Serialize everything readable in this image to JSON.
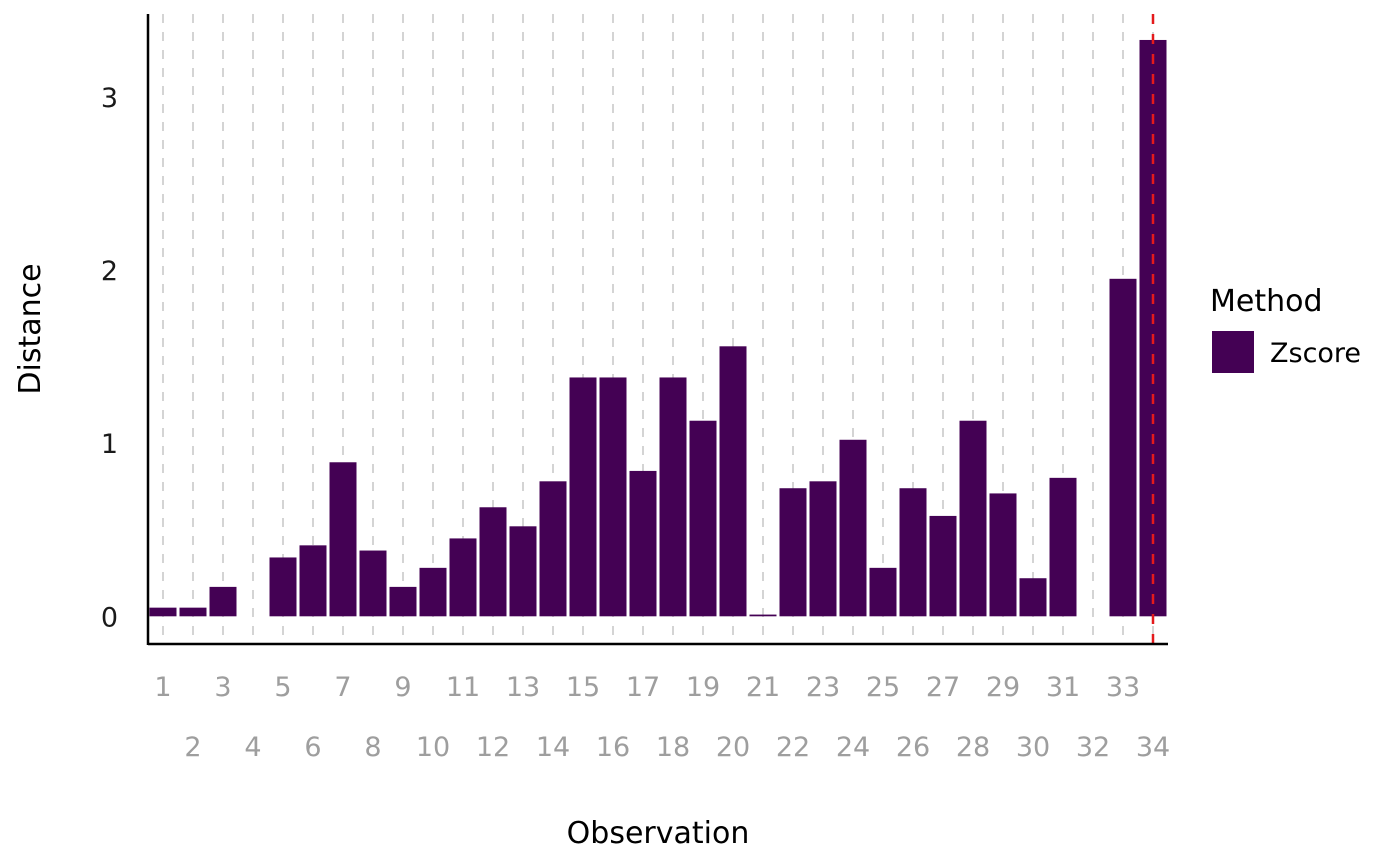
{
  "chart_data": {
    "type": "bar",
    "xlabel": "Observation",
    "ylabel": "Distance",
    "ylim": [
      -0.16,
      3.48
    ],
    "yticks": [
      0,
      1,
      2,
      3
    ],
    "grid": "vertical dashed at each category",
    "legend": {
      "title": "Method",
      "placement": "right",
      "entries": [
        {
          "label": "Zscore",
          "color": "#440154"
        }
      ]
    },
    "categories": [
      "1",
      "2",
      "3",
      "4",
      "5",
      "6",
      "7",
      "8",
      "9",
      "10",
      "11",
      "12",
      "13",
      "14",
      "15",
      "16",
      "17",
      "18",
      "19",
      "20",
      "21",
      "22",
      "23",
      "24",
      "25",
      "26",
      "27",
      "28",
      "29",
      "30",
      "31",
      "32",
      "33",
      "34"
    ],
    "series": [
      {
        "name": "Zscore",
        "color": "#440154",
        "values": [
          0.05,
          0.05,
          0.17,
          0.0,
          0.34,
          0.41,
          0.89,
          0.38,
          0.17,
          0.28,
          0.45,
          0.63,
          0.52,
          0.78,
          1.38,
          1.38,
          0.84,
          1.38,
          1.13,
          1.56,
          0.01,
          0.74,
          0.78,
          1.02,
          0.28,
          0.74,
          0.58,
          1.13,
          0.71,
          0.22,
          0.8,
          0.0,
          1.95,
          3.33
        ]
      }
    ],
    "threshold_line": {
      "category": "34",
      "color": "#e41a1c",
      "style": "dashed"
    }
  }
}
